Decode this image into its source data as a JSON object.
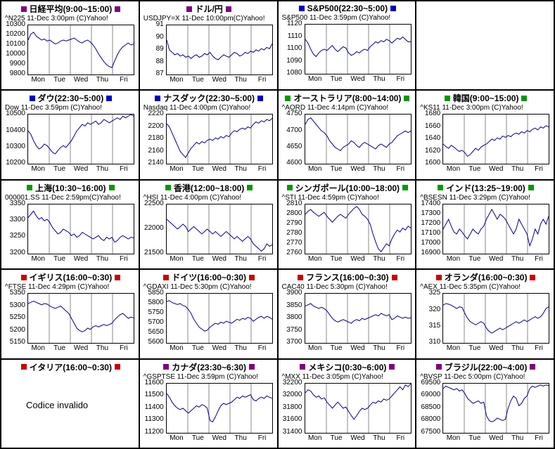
{
  "style": {
    "purple": "#800080",
    "blue": "#0000cc",
    "green": "#009900",
    "red": "#cc0000",
    "line_color": "#000099",
    "grid_color": "#888888",
    "border_color": "#000000",
    "background": "#ffffff"
  },
  "days": [
    "Mon",
    "Tue",
    "Wed",
    "Thu",
    "Fri"
  ],
  "chart_data": [
    {
      "id": "nikkei",
      "type": "line",
      "title": "日経平均(9:00~15:00)",
      "header_color": "#800080",
      "subtitle": "^N225 11-Dec 3:00pm (C)Yahoo!",
      "ylim": [
        9800,
        10300
      ],
      "yticks": [
        10300,
        10200,
        10100,
        10000,
        9900,
        9800
      ],
      "values": [
        10150,
        10210,
        10230,
        10190,
        10170,
        10150,
        10160,
        10140,
        10150,
        10130,
        10110,
        10120,
        10140,
        10150,
        10140,
        10150,
        10160,
        10170,
        10150,
        10130,
        10120,
        10140,
        10150,
        10130,
        10100,
        10060,
        10010,
        9970,
        9930,
        9900,
        9880,
        9870,
        9940,
        10000,
        10050,
        10080,
        10100,
        10120,
        10100,
        10110
      ]
    },
    {
      "id": "usdjpy",
      "type": "line",
      "title": "ドル/円",
      "header_color": "#800080",
      "subtitle": "USDJPY=X 11-Dec 10:00pm(C)Yahoo!",
      "ylim": [
        87,
        91
      ],
      "yticks": [
        91,
        90,
        89,
        88,
        87
      ],
      "values": [
        89.8,
        89.0,
        88.8,
        88.6,
        88.7,
        88.5,
        88.6,
        88.4,
        88.5,
        88.3,
        88.5,
        88.6,
        88.4,
        88.5,
        88.7,
        88.6,
        88.8,
        88.5,
        88.3,
        88.2,
        88.4,
        88.6,
        88.5,
        88.4,
        88.6,
        88.8,
        88.7,
        88.5,
        88.6,
        88.8,
        88.7,
        88.9,
        88.8,
        89.0,
        88.9,
        89.1,
        89.0,
        89.2,
        89.1,
        89.5
      ]
    },
    {
      "id": "sp500",
      "type": "line",
      "title": "S&P500(22:30~5:00)",
      "header_color": "#0000cc",
      "subtitle": "S&P500 11-Dec 3:59pm (C)Yahoo!",
      "ylim": [
        1080,
        1120
      ],
      "yticks": [
        1120,
        1110,
        1100,
        1090,
        1080
      ],
      "values": [
        1108,
        1105,
        1100,
        1096,
        1094,
        1097,
        1099,
        1100,
        1099,
        1101,
        1103,
        1100,
        1098,
        1100,
        1102,
        1101,
        1097,
        1095,
        1096,
        1098,
        1097,
        1099,
        1100,
        1099,
        1102,
        1104,
        1106,
        1105,
        1107,
        1106,
        1108,
        1107,
        1105,
        1107,
        1109,
        1108,
        1110,
        1108,
        1106,
        1106
      ]
    },
    {
      "id": "empty",
      "type": "empty"
    },
    {
      "id": "dow",
      "type": "line",
      "title": "ダウ(22:30~5:00)",
      "header_color": "#0000cc",
      "subtitle": "Dow 11-Dec 3:59pm (C)Yahoo!",
      "ylim": [
        10200,
        10500
      ],
      "yticks": [
        10500,
        10400,
        10300,
        10200
      ],
      "values": [
        10400,
        10380,
        10340,
        10310,
        10290,
        10300,
        10320,
        10310,
        10290,
        10270,
        10260,
        10280,
        10300,
        10310,
        10300,
        10320,
        10340,
        10370,
        10400,
        10420,
        10440,
        10430,
        10450,
        10440,
        10450,
        10460,
        10440,
        10450,
        10470,
        10460,
        10450,
        10460,
        10470,
        10480,
        10470,
        10490,
        10480,
        10490,
        10500,
        10490
      ]
    },
    {
      "id": "nasdaq",
      "type": "line",
      "title": "ナスダック(22:30~5:00)",
      "header_color": "#0000cc",
      "subtitle": "Nasdaq 11-Dec 4:00pm (C)Yahoo!",
      "ylim": [
        2140,
        2220
      ],
      "yticks": [
        2220,
        2200,
        2180,
        2160,
        2140
      ],
      "values": [
        2205,
        2200,
        2190,
        2180,
        2170,
        2160,
        2155,
        2150,
        2158,
        2165,
        2170,
        2175,
        2172,
        2176,
        2174,
        2178,
        2180,
        2178,
        2182,
        2180,
        2184,
        2182,
        2186,
        2184,
        2190,
        2194,
        2192,
        2196,
        2198,
        2196,
        2200,
        2198,
        2204,
        2208,
        2206,
        2210,
        2208,
        2212,
        2210,
        2214
      ]
    },
    {
      "id": "australia",
      "type": "line",
      "title": "オーストラリア(8:00~14:00)",
      "header_color": "#009900",
      "subtitle": "^AORD 11-Dec 4:14pm (C)Yahoo!",
      "ylim": [
        4600,
        4750
      ],
      "yticks": [
        4750,
        4700,
        4650,
        4600
      ],
      "values": [
        4720,
        4735,
        4740,
        4730,
        4720,
        4710,
        4700,
        4695,
        4685,
        4670,
        4660,
        4650,
        4645,
        4640,
        4650,
        4655,
        4660,
        4670,
        4665,
        4655,
        4650,
        4660,
        4665,
        4660,
        4655,
        4650,
        4645,
        4655,
        4660,
        4655,
        4650,
        4660,
        4665,
        4675,
        4685,
        4690,
        4695,
        4700,
        4695,
        4700
      ]
    },
    {
      "id": "korea",
      "type": "line",
      "title": "韓国(9:00~15:00)",
      "header_color": "#009900",
      "subtitle": "^KS11 11-Dec 3:00pm (C)Yahoo!",
      "ylim": [
        1600,
        1680
      ],
      "yticks": [
        1680,
        1660,
        1640,
        1620,
        1600
      ],
      "values": [
        1632,
        1628,
        1625,
        1630,
        1627,
        1623,
        1620,
        1622,
        1618,
        1612,
        1615,
        1620,
        1625,
        1622,
        1627,
        1630,
        1632,
        1636,
        1640,
        1638,
        1642,
        1640,
        1645,
        1643,
        1646,
        1644,
        1648,
        1650,
        1648,
        1652,
        1650,
        1654,
        1652,
        1656,
        1658,
        1655,
        1660,
        1658,
        1662,
        1660
      ]
    },
    {
      "id": "shanghai",
      "type": "line",
      "title": "上海(10:30~16:00)",
      "header_color": "#009900",
      "subtitle": "000001.SS 11-Dec 2:59pm(C)Yahoo!",
      "ylim": [
        3200,
        3350
      ],
      "yticks": [
        3350,
        3300,
        3250,
        3200
      ],
      "values": [
        3310,
        3320,
        3330,
        3315,
        3305,
        3310,
        3300,
        3305,
        3295,
        3280,
        3270,
        3260,
        3265,
        3275,
        3270,
        3265,
        3255,
        3260,
        3250,
        3255,
        3265,
        3260,
        3255,
        3250,
        3245,
        3250,
        3255,
        3245,
        3240,
        3250,
        3245,
        3250,
        3235,
        3240,
        3250,
        3255,
        3250,
        3245,
        3250,
        3248
      ]
    },
    {
      "id": "hongkong",
      "type": "line",
      "title": "香港(12:00~18:00)",
      "header_color": "#009900",
      "subtitle": "^HSI 11-Dec 4:00pm (C)Yahoo!",
      "ylim": [
        21500,
        22500
      ],
      "yticks": [
        22500,
        22000,
        21500
      ],
      "values": [
        22200,
        22150,
        22100,
        22050,
        22000,
        22050,
        22100,
        22050,
        21950,
        22000,
        22050,
        22000,
        21950,
        21900,
        21950,
        22000,
        21950,
        21900,
        21950,
        21900,
        21850,
        21900,
        21950,
        21900,
        21850,
        21800,
        21850,
        21800,
        21750,
        21800,
        21850,
        21800,
        21700,
        21650,
        21600,
        21550,
        21600,
        21700,
        21650,
        21680
      ]
    },
    {
      "id": "singapore",
      "type": "line",
      "title": "シンガポール(10:00~18:00)",
      "header_color": "#009900",
      "subtitle": "^STI 11-Dec 4:59pm (C)Yahoo!",
      "ylim": [
        2760,
        2810
      ],
      "yticks": [
        2810,
        2800,
        2790,
        2780,
        2770,
        2760
      ],
      "values": [
        2800,
        2803,
        2805,
        2802,
        2800,
        2798,
        2800,
        2802,
        2798,
        2795,
        2792,
        2795,
        2798,
        2800,
        2798,
        2796,
        2800,
        2803,
        2806,
        2808,
        2805,
        2800,
        2798,
        2795,
        2790,
        2780,
        2772,
        2765,
        2762,
        2766,
        2770,
        2768,
        2775,
        2780,
        2784,
        2782,
        2786,
        2784,
        2788,
        2786
      ]
    },
    {
      "id": "india",
      "type": "line",
      "title": "インド(13:25~19:00)",
      "header_color": "#009900",
      "subtitle": "^BSESN 11-Dec 3:29pm (C)Yahoo!",
      "ylim": [
        16900,
        17400
      ],
      "yticks": [
        17400,
        17300,
        17200,
        17100,
        17000,
        16900
      ],
      "values": [
        17150,
        17200,
        17250,
        17180,
        17120,
        17100,
        17150,
        17120,
        17080,
        17050,
        17100,
        17150,
        17120,
        17100,
        17150,
        17180,
        17250,
        17300,
        17350,
        17300,
        17250,
        17300,
        17280,
        17250,
        17200,
        17150,
        17100,
        17150,
        17250,
        17200,
        17150,
        17100,
        16980,
        17050,
        17150,
        17100,
        17200,
        17250,
        17200,
        17280
      ]
    },
    {
      "id": "uk",
      "type": "line",
      "title": "イギリス(16:00~0:30)",
      "header_color": "#cc0000",
      "subtitle": "^FTSE 11-Dec 4:29pm (C)Yahoo!",
      "ylim": [
        5150,
        5350
      ],
      "yticks": [
        5350,
        5300,
        5250,
        5200,
        5150
      ],
      "values": [
        5310,
        5315,
        5320,
        5315,
        5310,
        5305,
        5310,
        5308,
        5300,
        5295,
        5290,
        5295,
        5300,
        5290,
        5280,
        5270,
        5250,
        5230,
        5210,
        5200,
        5195,
        5200,
        5210,
        5205,
        5215,
        5220,
        5215,
        5220,
        5225,
        5220,
        5225,
        5230,
        5245,
        5255,
        5265,
        5270,
        5260,
        5250,
        5255,
        5252
      ]
    },
    {
      "id": "germany",
      "type": "line",
      "title": "ドイツ(16:00~0:30)",
      "header_color": "#cc0000",
      "subtitle": "^GDAXI 11-Dec 5:30pm (C)Yahoo!",
      "ylim": [
        5600,
        5850
      ],
      "yticks": [
        5850,
        5800,
        5750,
        5700,
        5650,
        5600
      ],
      "values": [
        5810,
        5815,
        5805,
        5800,
        5795,
        5800,
        5790,
        5785,
        5770,
        5750,
        5720,
        5700,
        5680,
        5670,
        5660,
        5665,
        5680,
        5690,
        5700,
        5695,
        5705,
        5700,
        5710,
        5705,
        5700,
        5710,
        5720,
        5715,
        5725,
        5720,
        5730,
        5725,
        5710,
        5720,
        5730,
        5735,
        5725,
        5735,
        5730,
        5720
      ]
    },
    {
      "id": "france",
      "type": "line",
      "title": "フランス(16:00~0:30)",
      "header_color": "#cc0000",
      "subtitle": "CAC40 11-Dec 5:30pm (C)Yahoo!",
      "ylim": [
        3700,
        3900
      ],
      "yticks": [
        3900,
        3850,
        3800,
        3750,
        3700
      ],
      "values": [
        3850,
        3855,
        3860,
        3850,
        3845,
        3840,
        3845,
        3840,
        3830,
        3815,
        3800,
        3790,
        3785,
        3790,
        3795,
        3790,
        3785,
        3780,
        3790,
        3795,
        3790,
        3800,
        3795,
        3800,
        3805,
        3810,
        3815,
        3810,
        3820,
        3815,
        3810,
        3815,
        3795,
        3800,
        3810,
        3805,
        3800,
        3805,
        3800,
        3802
      ]
    },
    {
      "id": "netherlands",
      "type": "line",
      "title": "オランダ(16:00~0:30)",
      "header_color": "#cc0000",
      "subtitle": "^AEX 11-Dec 5:35pm (C)Yahoo!",
      "ylim": [
        310,
        325
      ],
      "yticks": [
        325,
        320,
        315,
        310
      ],
      "values": [
        321.5,
        322.0,
        321.8,
        321.5,
        321.0,
        320.5,
        321.0,
        320.8,
        319.0,
        317.5,
        316.5,
        316.0,
        315.5,
        316.0,
        316.5,
        316.0,
        314.5,
        313.5,
        313.0,
        313.5,
        314.0,
        314.5,
        314.0,
        314.5,
        315.0,
        315.5,
        316.0,
        316.5,
        316.0,
        316.5,
        317.0,
        316.5,
        317.0,
        317.5,
        318.0,
        317.5,
        318.0,
        319.0,
        320.5,
        321.0
      ]
    },
    {
      "id": "italy",
      "type": "invalid",
      "title": "イタリア(16:00~0:30)",
      "header_color": "#cc0000",
      "message": "Codice invalido"
    },
    {
      "id": "canada",
      "type": "line",
      "title": "カナダ(23:30~6:30)",
      "header_color": "#800080",
      "subtitle": "^GSPTSE 11-Dec 3:59pm (C)Yahoo!",
      "ylim": [
        11200,
        11600
      ],
      "yticks": [
        11600,
        11500,
        11400,
        11300,
        11200
      ],
      "values": [
        11520,
        11490,
        11450,
        11420,
        11400,
        11390,
        11400,
        11380,
        11360,
        11380,
        11400,
        11420,
        11410,
        11430,
        11420,
        11400,
        11300,
        11290,
        11330,
        11380,
        11420,
        11440,
        11430,
        11440,
        11450,
        11470,
        11490,
        11480,
        11500,
        11490,
        11500,
        11510,
        11470,
        11460,
        11480,
        11490,
        11480,
        11500,
        11490,
        11480
      ]
    },
    {
      "id": "mexico",
      "type": "line",
      "title": "メキシコ(0:30~6:00)",
      "header_color": "#800080",
      "subtitle": "^MXX 11-Dec 3:05pm (C)Yahoo!",
      "ylim": [
        31400,
        32200
      ],
      "yticks": [
        32200,
        32000,
        31800,
        31600,
        31400
      ],
      "values": [
        32050,
        32100,
        32080,
        32020,
        31980,
        32000,
        31950,
        31970,
        31900,
        31850,
        31800,
        31850,
        31900,
        31850,
        31800,
        31820,
        31750,
        31680,
        31620,
        31680,
        31750,
        31800,
        31780,
        31800,
        31850,
        31900,
        31880,
        31920,
        31900,
        31950,
        31930,
        31950,
        32000,
        32050,
        32100,
        32150,
        32100,
        32180,
        32150,
        32200
      ]
    },
    {
      "id": "brazil",
      "type": "line",
      "title": "ブラジル(22:00~4:00)",
      "header_color": "#800080",
      "subtitle": "^BVSP 11-Dec 5:00pm (C)Yahoo!",
      "ylim": [
        67500,
        69500
      ],
      "yticks": [
        69500,
        69000,
        68500,
        68000,
        67500
      ],
      "values": [
        69300,
        69400,
        69350,
        69300,
        69250,
        69300,
        69200,
        69250,
        69100,
        68900,
        68800,
        68700,
        68750,
        68800,
        68700,
        68750,
        68200,
        68000,
        67950,
        68000,
        68100,
        68050,
        68000,
        68050,
        68500,
        68800,
        69000,
        68900,
        68600,
        68700,
        68900,
        69000,
        69300,
        69400,
        69350,
        69400,
        69450,
        69400,
        69450,
        69420
      ]
    }
  ]
}
